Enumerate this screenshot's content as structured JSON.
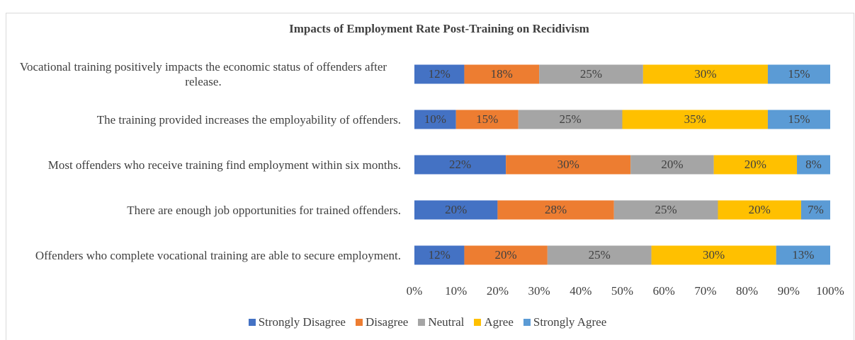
{
  "chart_data": {
    "type": "stacked_barh",
    "title": "Impacts of Employment Rate Post-Training on Recidivism",
    "categories": [
      "Vocational training positively impacts the economic status of offenders after release.",
      "The training provided increases the employability of offenders.",
      "Most offenders who receive training find employment within six months.",
      "There are enough job opportunities for trained offenders.",
      "Offenders who complete vocational training are able to secure employment."
    ],
    "series": [
      {
        "name": "Strongly Disagree",
        "color": "#4472c4",
        "values": [
          12,
          10,
          22,
          20,
          12
        ],
        "value_labels": [
          "12%",
          "10%",
          "22%",
          "20%",
          "12%"
        ]
      },
      {
        "name": "Disagree",
        "color": "#ed7d31",
        "values": [
          18,
          15,
          30,
          28,
          20
        ],
        "value_labels": [
          "18%",
          "15%",
          "30%",
          "28%",
          "20%"
        ]
      },
      {
        "name": "Neutral",
        "color": "#a5a5a5",
        "values": [
          25,
          25,
          20,
          25,
          25
        ],
        "value_labels": [
          "25%",
          "25%",
          "20%",
          "25%",
          "25%"
        ]
      },
      {
        "name": "Agree",
        "color": "#ffc000",
        "values": [
          30,
          35,
          20,
          20,
          30
        ],
        "value_labels": [
          "30%",
          "35%",
          "20%",
          "20%",
          "30%"
        ]
      },
      {
        "name": "Strongly Agree",
        "color": "#5b9bd5",
        "values": [
          15,
          15,
          8,
          7,
          13
        ],
        "value_labels": [
          "15%",
          "15%",
          "8%",
          "7%",
          "13%"
        ]
      }
    ],
    "xlim": [
      0,
      100
    ],
    "xticks": [
      {
        "value": 0,
        "label": "0%"
      },
      {
        "value": 10,
        "label": "10%"
      },
      {
        "value": 20,
        "label": "20%"
      },
      {
        "value": 30,
        "label": "30%"
      },
      {
        "value": 40,
        "label": "40%"
      },
      {
        "value": 50,
        "label": "50%"
      },
      {
        "value": 60,
        "label": "60%"
      },
      {
        "value": 70,
        "label": "70%"
      },
      {
        "value": 80,
        "label": "80%"
      },
      {
        "value": 90,
        "label": "90%"
      },
      {
        "value": 100,
        "label": "100%"
      }
    ],
    "legend": "bottom"
  }
}
